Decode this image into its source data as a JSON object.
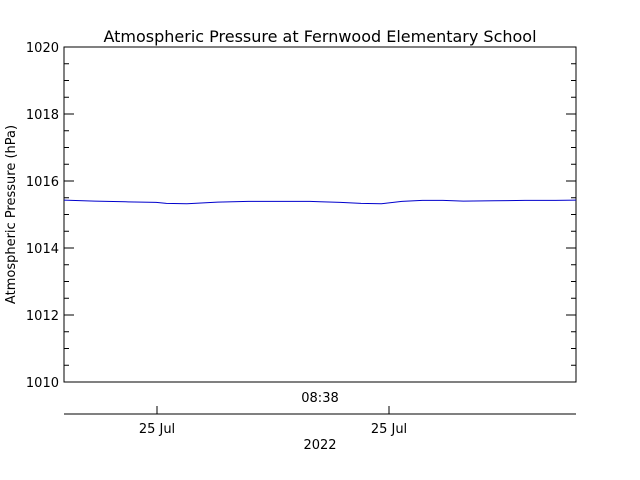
{
  "chart_data": {
    "type": "line",
    "title": "Atmospheric Pressure at Fernwood Elementary School",
    "ylabel": "Atmospheric Pressure (hPa)",
    "ylim": [
      1010,
      1020
    ],
    "yticks": [
      1010,
      1012,
      1014,
      1016,
      1018,
      1020
    ],
    "ytick_labels": [
      "1010",
      "1012",
      "1014",
      "1016",
      "1018",
      "1020"
    ],
    "x_annotation": "08:38",
    "xtick_labels": [
      "25 Jul",
      "25 Jul"
    ],
    "xlabel": "2022",
    "grid": false,
    "series": [
      {
        "color": "#0000cc",
        "x": [
          0,
          0.06,
          0.12,
          0.18,
          0.2,
          0.24,
          0.3,
          0.36,
          0.42,
          0.48,
          0.5,
          0.54,
          0.58,
          0.62,
          0.66,
          0.7,
          0.74,
          0.78,
          0.84,
          0.9,
          0.96,
          1.0
        ],
        "values": [
          1015.43,
          1015.4,
          1015.38,
          1015.36,
          1015.33,
          1015.32,
          1015.37,
          1015.39,
          1015.39,
          1015.39,
          1015.38,
          1015.36,
          1015.33,
          1015.32,
          1015.39,
          1015.42,
          1015.42,
          1015.4,
          1015.41,
          1015.42,
          1015.42,
          1015.43
        ]
      }
    ]
  }
}
